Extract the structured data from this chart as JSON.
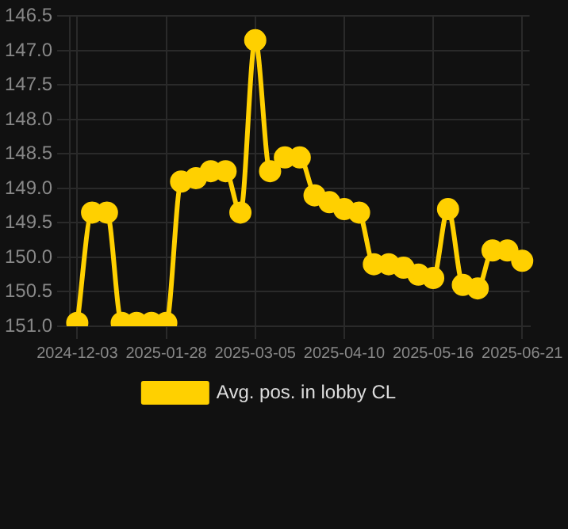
{
  "chart_data": {
    "type": "line",
    "categories": [
      "2024-12-03",
      null,
      null,
      null,
      null,
      null,
      "2025-01-28",
      null,
      null,
      null,
      null,
      null,
      "2025-03-05",
      null,
      null,
      null,
      null,
      null,
      "2025-04-10",
      null,
      null,
      null,
      null,
      null,
      "2025-05-16",
      null,
      null,
      null,
      null,
      null,
      "2025-06-21"
    ],
    "series": [
      {
        "name": "Avg. pos. in lobby CL",
        "color": "#ffd000",
        "values": [
          150.95,
          149.35,
          149.35,
          150.95,
          150.95,
          150.95,
          150.95,
          148.9,
          148.85,
          148.75,
          148.75,
          149.35,
          146.85,
          148.75,
          148.55,
          148.55,
          149.1,
          149.2,
          149.3,
          149.35,
          150.1,
          150.1,
          150.15,
          150.25,
          150.3,
          149.3,
          150.4,
          150.45,
          149.9,
          149.9,
          150.05
        ]
      }
    ],
    "ylim": [
      151.0,
      146.5
    ],
    "yticks": [
      {
        "value": 146.5,
        "label": "146.5"
      },
      {
        "value": 147,
        "label": "147.0"
      },
      {
        "value": 147.5,
        "label": "147.5"
      },
      {
        "value": 148,
        "label": "148.0"
      },
      {
        "value": 148.5,
        "label": "148.5"
      },
      {
        "value": 149,
        "label": "149.0"
      },
      {
        "value": 149.5,
        "label": "149.5"
      },
      {
        "value": 150,
        "label": "150.0"
      },
      {
        "value": 150.5,
        "label": "150.5"
      },
      {
        "value": 151,
        "label": "151.0"
      }
    ],
    "grid": true,
    "legend": "bottom",
    "marker": "circle",
    "line_style": "solid"
  }
}
